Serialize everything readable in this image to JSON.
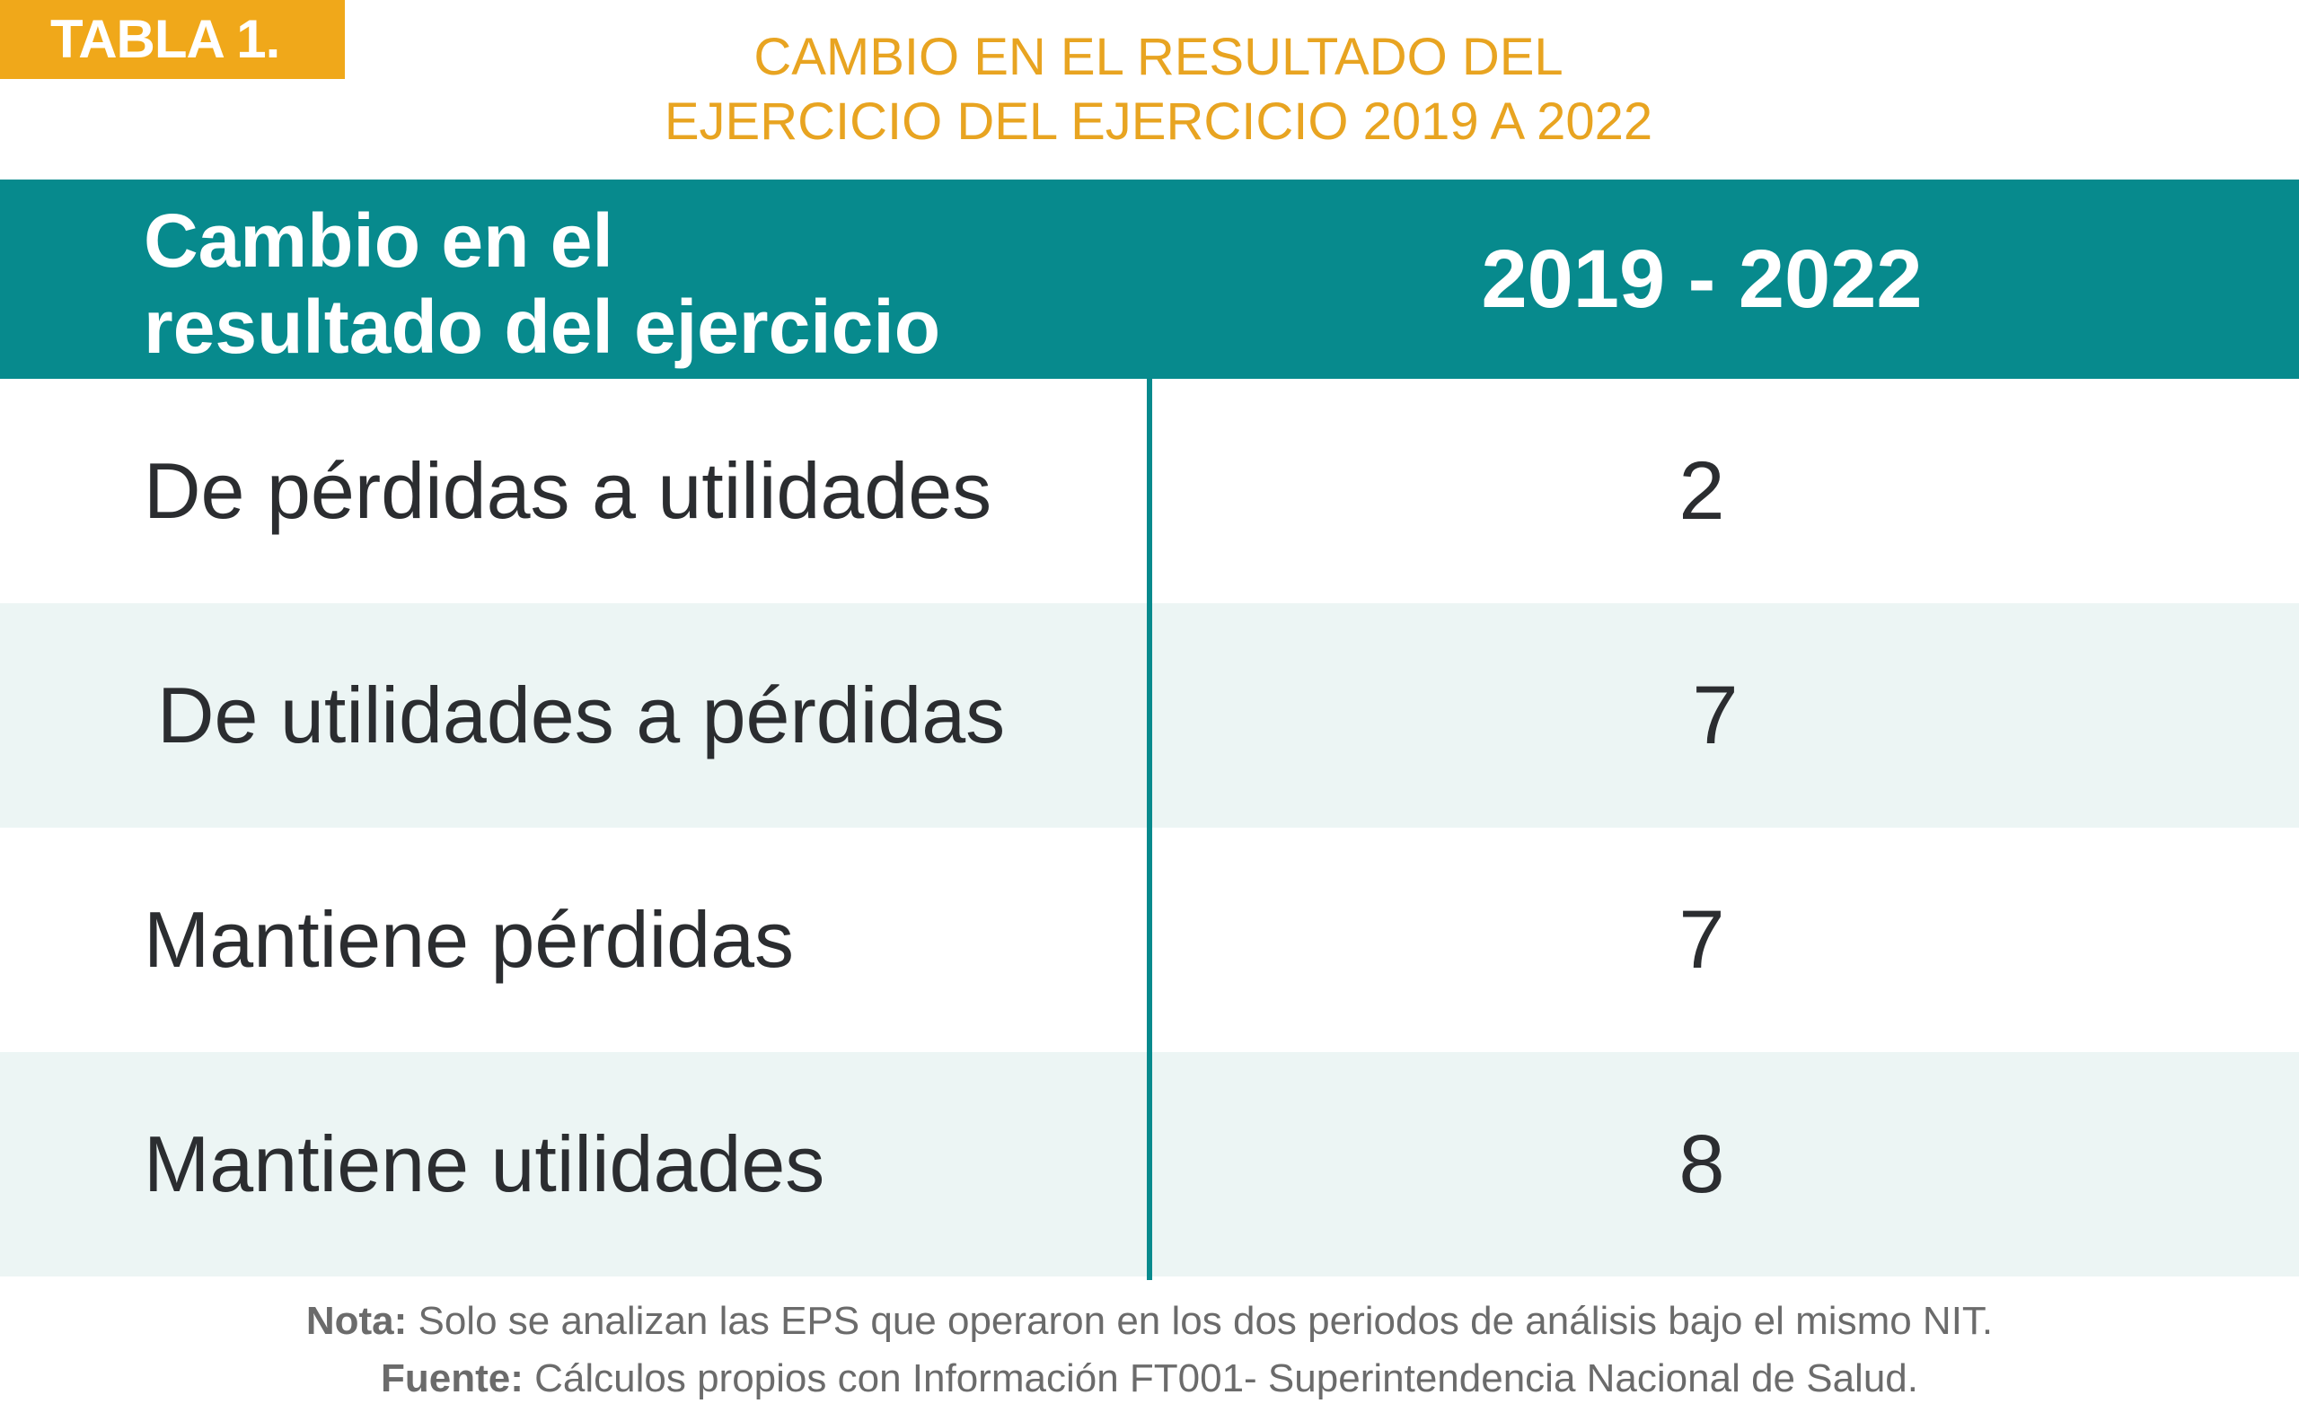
{
  "tag": "TABLA 1.",
  "title": {
    "line1": "CAMBIO EN EL RESULTADO DEL",
    "line2": "EJERCICIO DEL EJERCICIO 2019 A 2022"
  },
  "table": {
    "header": {
      "col1_line1": "Cambio en el",
      "col1_line2": "resultado del ejercicio",
      "col2": "2019 - 2022"
    },
    "rows": [
      {
        "label": "De pérdidas a utilidades",
        "value": "2"
      },
      {
        "label": "De utilidades a pérdidas",
        "value": "7"
      },
      {
        "label": "Mantiene pérdidas",
        "value": "7"
      },
      {
        "label": "Mantiene utilidades",
        "value": "8"
      }
    ]
  },
  "notes": {
    "nota_label": "Nota:",
    "nota_text": " Solo se analizan las EPS que operaron en los dos periodos de análisis bajo el mismo NIT.",
    "fuente_label": "Fuente:",
    "fuente_text": " Cálculos propios con Información FT001- Superintendencia Nacional de Salud."
  },
  "colors": {
    "accent_orange": "#f0a81a",
    "title_orange": "#e8a421",
    "teal": "#078a8d",
    "row_shade": "#ecf5f4"
  }
}
